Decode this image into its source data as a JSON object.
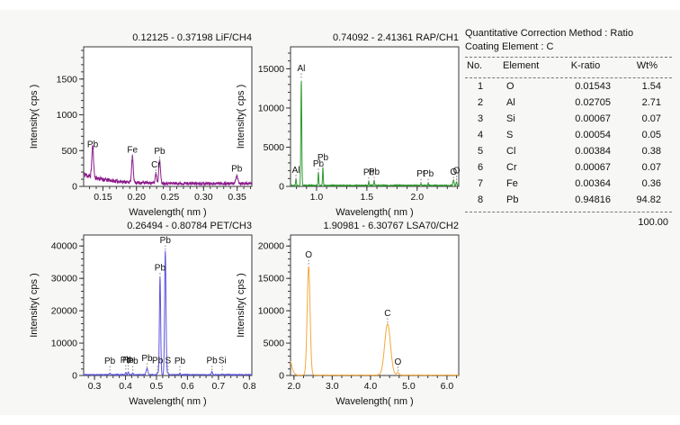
{
  "app": {
    "panel_background": "#f7f7f6",
    "plot_background": "#ffffff",
    "axis_color": "#3a3a3a"
  },
  "table": {
    "header_line1": "Quantitative Correction Method : Ratio",
    "header_line2": "Coating Element : C",
    "columns": [
      "No.",
      "Element",
      "K-ratio",
      "Wt%"
    ],
    "rows": [
      [
        "1",
        "O",
        "0.01543",
        "1.54"
      ],
      [
        "2",
        "Al",
        "0.02705",
        "2.71"
      ],
      [
        "3",
        "Si",
        "0.00067",
        "0.07"
      ],
      [
        "4",
        "S",
        "0.00054",
        "0.05"
      ],
      [
        "5",
        "Cl",
        "0.00384",
        "0.38"
      ],
      [
        "6",
        "Cr",
        "0.00067",
        "0.07"
      ],
      [
        "7",
        "Fe",
        "0.00364",
        "0.36"
      ],
      [
        "8",
        "Pb",
        "0.94816",
        "94.82"
      ]
    ],
    "total": "100.00"
  },
  "chart_data": [
    {
      "type": "line",
      "id": "lif-ch4",
      "title": "0.12125 - 0.37198  LiF/CH4",
      "xlabel": "Wavelength( nm )",
      "ylabel": "Intensity( cps )",
      "color": "#8B1A8B",
      "xlim": [
        0.12125,
        0.37198
      ],
      "ylim": [
        0,
        1950
      ],
      "x_major_ticks": [
        0.15,
        0.2,
        0.25,
        0.3,
        0.35
      ],
      "x_major_labels": [
        "0.15",
        "0.20",
        "0.25",
        "0.30",
        "0.35"
      ],
      "x_minor_step": 0.01,
      "y_major_ticks": [
        0,
        500,
        1000,
        1500
      ],
      "y_minor_step": 100,
      "baseline": {
        "left": 170,
        "right": 40,
        "decay": 7
      },
      "noise": 42,
      "seed": 11,
      "peaks": [
        {
          "element": "Pb",
          "x": 0.1347,
          "intensity": 430,
          "sigma": 0.0013,
          "label_level": 545
        },
        {
          "element": "Fe",
          "x": 0.194,
          "intensity": 360,
          "sigma": 0.0012,
          "label_level": 470
        },
        {
          "element": "Cr",
          "x": 0.229,
          "intensity": 150,
          "sigma": 0.001,
          "label_level": 265
        },
        {
          "element": "Pb",
          "x": 0.2345,
          "intensity": 330,
          "sigma": 0.0012,
          "label_level": 450
        },
        {
          "element": "Pb",
          "x": 0.3495,
          "intensity": 100,
          "sigma": 0.0016,
          "label_level": 205
        }
      ]
    },
    {
      "type": "line",
      "id": "rap-ch1",
      "title": "0.74092 - 2.41361  RAP/CH1",
      "xlabel": "Wavelength( nm )",
      "ylabel": "Intensity( cps )",
      "color": "#2E9B2E",
      "xlim": [
        0.74092,
        2.41361
      ],
      "ylim": [
        0,
        17800
      ],
      "x_major_ticks": [
        1.0,
        1.5,
        2.0
      ],
      "x_major_labels": [
        "1.0",
        "1.5",
        "2.0"
      ],
      "x_minor_step": 0.1,
      "y_major_ticks": [
        0,
        5000,
        10000,
        15000
      ],
      "y_minor_step": 1000,
      "baseline": {
        "left": 130,
        "right": 110,
        "decay": 0
      },
      "noise": 55,
      "seed": 22,
      "peaks": [
        {
          "element": "Al",
          "x": 0.795,
          "intensity": 900,
          "sigma": 0.0035,
          "label_level": 1750
        },
        {
          "element": "Al",
          "x": 0.848,
          "intensity": 13500,
          "sigma": 0.0045,
          "label_level": 14700
        },
        {
          "element": "Pb",
          "x": 1.018,
          "intensity": 1700,
          "sigma": 0.0035,
          "label_level": 2550
        },
        {
          "element": "Pb",
          "x": 1.063,
          "intensity": 2300,
          "sigma": 0.0035,
          "label_level": 3350
        },
        {
          "element": "Pb",
          "x": 1.519,
          "intensity": 520,
          "sigma": 0.0035,
          "label_level": 1450
        },
        {
          "element": "Pb",
          "x": 1.573,
          "intensity": 650,
          "sigma": 0.0035,
          "label_level": 1500
        },
        {
          "element": "Pt",
          "x": 2.038,
          "intensity": 260,
          "sigma": 0.0035,
          "label_level": 1250
        },
        {
          "element": "Pb",
          "x": 2.11,
          "intensity": 280,
          "sigma": 0.0035,
          "label_level": 1250
        },
        {
          "element": "O",
          "x": 2.362,
          "intensity": 750,
          "sigma": 0.005,
          "label_level": 1500
        },
        {
          "element": "O",
          "x": 2.392,
          "intensity": 450,
          "sigma": 0.004,
          "label_level": 1650
        }
      ]
    },
    {
      "type": "line",
      "id": "pet-ch3",
      "title": "0.26494 - 0.80784  PET/CH3",
      "xlabel": "Wavelength( nm )",
      "ylabel": "Intensity( cps )",
      "color": "#5B54DB",
      "xlim": [
        0.26494,
        0.80784
      ],
      "ylim": [
        0,
        43400
      ],
      "x_major_ticks": [
        0.3,
        0.4,
        0.5,
        0.6,
        0.7,
        0.8
      ],
      "x_major_labels": [
        "0.3",
        "0.4",
        "0.5",
        "0.6",
        "0.7",
        "0.8"
      ],
      "x_minor_step": 0.02,
      "y_major_ticks": [
        0,
        10000,
        20000,
        30000,
        40000
      ],
      "y_minor_step": 2000,
      "baseline": {
        "left": 240,
        "right": 220,
        "decay": 0
      },
      "noise": 100,
      "seed": 33,
      "peaks": [
        {
          "element": "Pb",
          "x": 0.3495,
          "intensity": 500,
          "sigma": 0.0018,
          "label_level": 3600
        },
        {
          "element": "Pb",
          "x": 0.401,
          "intensity": 700,
          "sigma": 0.0015,
          "label_level": 3900
        },
        {
          "element": "Pb",
          "x": 0.409,
          "intensity": 850,
          "sigma": 0.0015,
          "label_level": 3900
        },
        {
          "element": "Pb",
          "x": 0.4235,
          "intensity": 600,
          "sigma": 0.0015,
          "label_level": 3600
        },
        {
          "element": "Pb",
          "x": 0.4695,
          "intensity": 1900,
          "sigma": 0.0028,
          "label_level": 4500
        },
        {
          "element": "Pb",
          "x": 0.5035,
          "intensity": 700,
          "sigma": 0.0015,
          "label_level": 3700
        },
        {
          "element": "Pb",
          "x": 0.5115,
          "intensity": 30400,
          "sigma": 0.002,
          "label_level": 32400
        },
        {
          "element": "Pb",
          "x": 0.5285,
          "intensity": 38300,
          "sigma": 0.0022,
          "label_level": 40900
        },
        {
          "element": "S",
          "x": 0.5373,
          "intensity": 600,
          "sigma": 0.0015,
          "label_level": 3700
        },
        {
          "element": "Pb",
          "x": 0.5755,
          "intensity": 500,
          "sigma": 0.0015,
          "label_level": 3600
        },
        {
          "element": "Pb",
          "x": 0.679,
          "intensity": 900,
          "sigma": 0.0018,
          "label_level": 3700
        },
        {
          "element": "Si",
          "x": 0.7126,
          "intensity": 300,
          "sigma": 0.0015,
          "label_level": 3700
        }
      ]
    },
    {
      "type": "line",
      "id": "lsa70-ch2",
      "title": "1.90981 - 6.30767  LSA70/CH2",
      "xlabel": "Wavelength( nm )",
      "ylabel": "Intensity( cps )",
      "color": "#F2A83B",
      "xlim": [
        1.90981,
        6.30767
      ],
      "ylim": [
        0,
        21700
      ],
      "x_major_ticks": [
        2.0,
        3.0,
        4.0,
        5.0,
        6.0
      ],
      "x_major_labels": [
        "2.0",
        "3.0",
        "4.0",
        "5.0",
        "6.0"
      ],
      "x_minor_step": 0.25,
      "y_major_ticks": [
        0,
        5000,
        10000,
        15000,
        20000
      ],
      "y_minor_step": 1000,
      "baseline": {
        "left": 60,
        "right": 50,
        "decay": 0
      },
      "noise": 18,
      "seed": 44,
      "peaks": [
        {
          "element": "",
          "x": 1.865,
          "intensity": 2600,
          "sigma": 0.07,
          "label_level": 0
        },
        {
          "element": "O",
          "x": 2.383,
          "intensity": 16800,
          "sigma": 0.038,
          "label_level": 18200
        },
        {
          "element": "C",
          "x": 4.447,
          "intensity": 7900,
          "sigma": 0.075,
          "label_level": 9200
        },
        {
          "element": "O",
          "x": 4.718,
          "intensity": 380,
          "sigma": 0.03,
          "label_level": 1700
        }
      ]
    }
  ]
}
